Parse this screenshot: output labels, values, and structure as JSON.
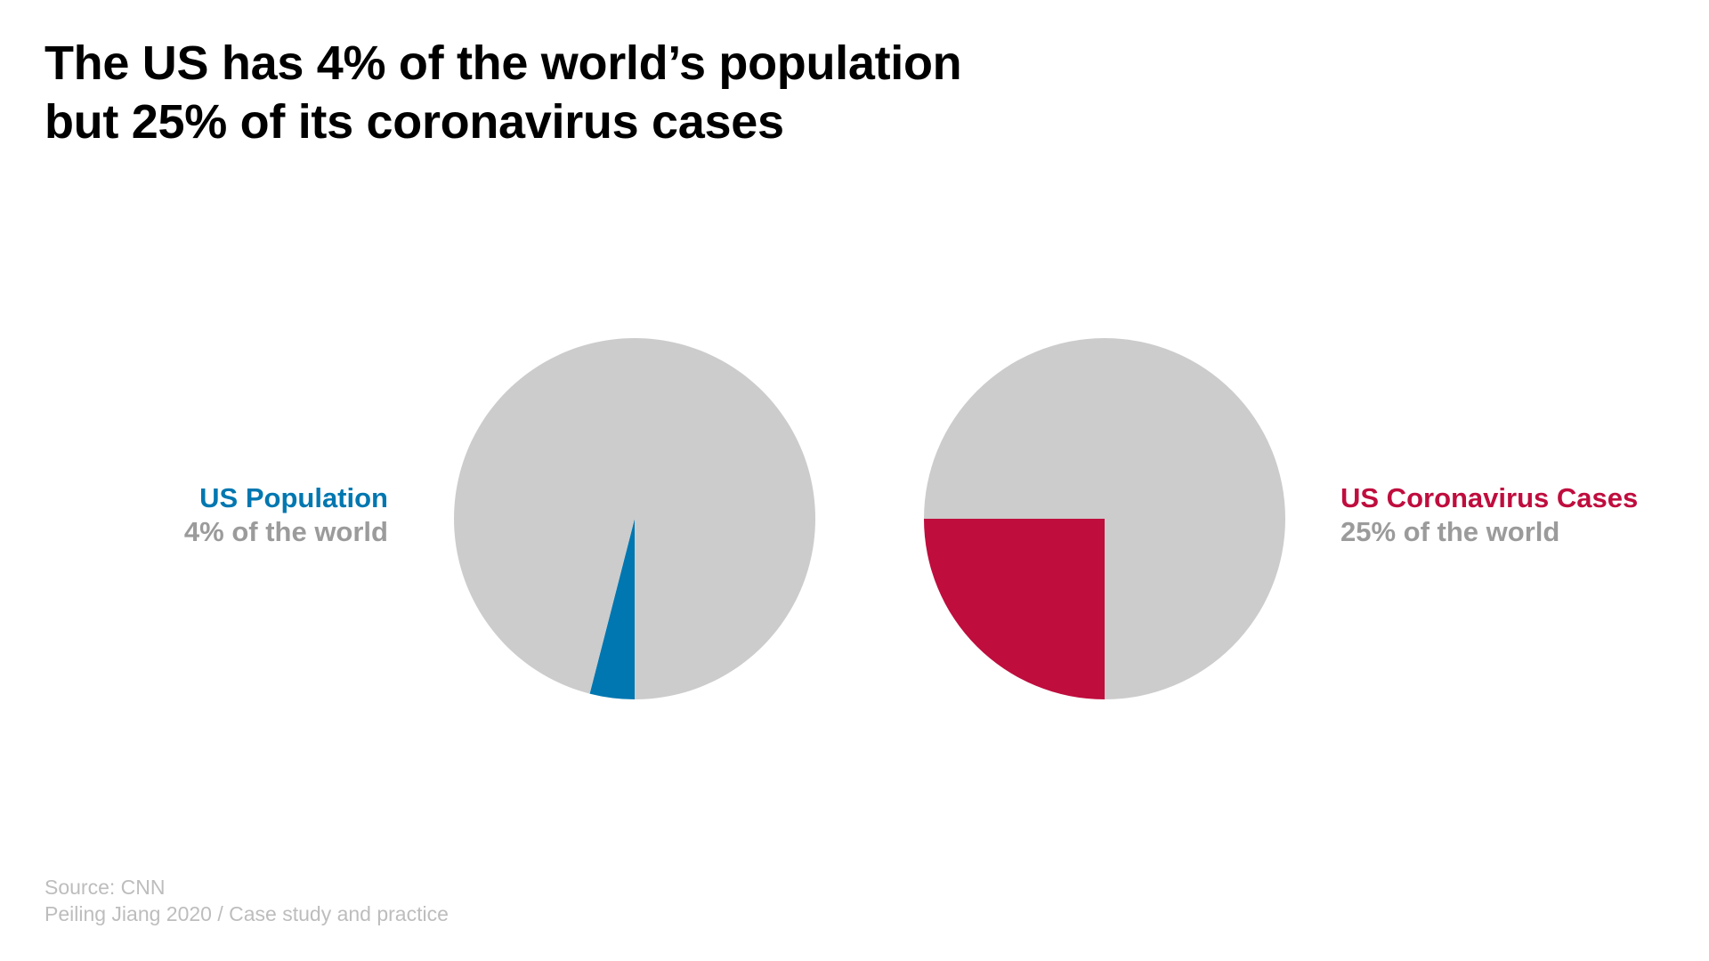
{
  "title": {
    "line1": "The US has 4% of the world’s population",
    "line2": "but 25% of its coronavirus cases"
  },
  "colors": {
    "background": "#ffffff",
    "rest_of_world": "#cccccc",
    "population": "#0077b0",
    "cases": "#bf0d3e",
    "subtitle_text": "#9b9b9b",
    "footer_text": "#bdbdbd"
  },
  "chart_data": [
    {
      "type": "pie",
      "title": "",
      "label": "US Population",
      "sublabel": "4% of the world",
      "slices": [
        {
          "name": "US",
          "value": 4,
          "color": "#0077b0"
        },
        {
          "name": "Rest of world",
          "value": 96,
          "color": "#cccccc"
        }
      ],
      "label_position": "left"
    },
    {
      "type": "pie",
      "title": "",
      "label": "US Coronavirus Cases",
      "sublabel": "25% of the world",
      "slices": [
        {
          "name": "US",
          "value": 25,
          "color": "#bf0d3e"
        },
        {
          "name": "Rest of world",
          "value": 75,
          "color": "#cccccc"
        }
      ],
      "label_position": "right"
    }
  ],
  "footer": {
    "source": "Source: CNN",
    "credit": "Peiling Jiang 2020 / Case study and practice"
  }
}
